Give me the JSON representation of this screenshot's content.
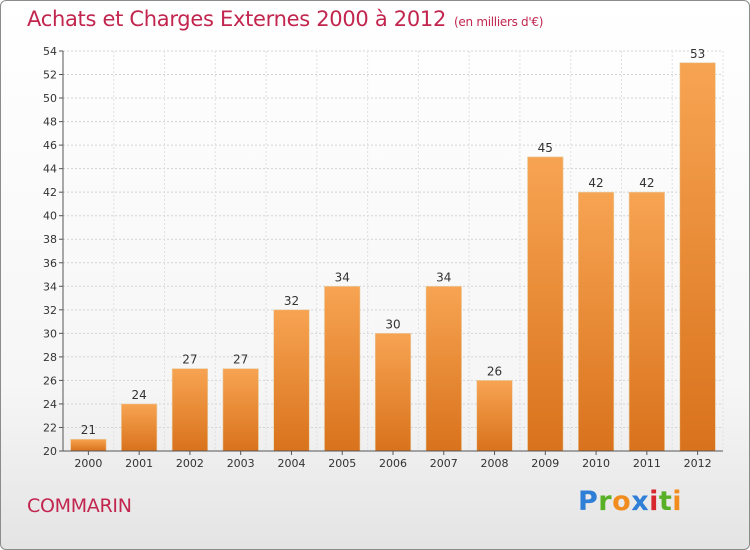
{
  "header": {
    "title": "Achats et Charges Externes 2000 à 2012",
    "subtitle": "(en milliers d'€)"
  },
  "commune": "COMMARIN",
  "brand": {
    "letters": [
      {
        "char": "P",
        "color": "#2f7fd6"
      },
      {
        "char": "r",
        "color": "#58b027"
      },
      {
        "char": "o",
        "color": "#f18c1e"
      },
      {
        "char": "x",
        "color": "#2f7fd6"
      },
      {
        "char": "i",
        "color": "#d8262e"
      },
      {
        "char": "t",
        "color": "#58b027"
      },
      {
        "char": "i",
        "color": "#f18c1e"
      }
    ]
  },
  "chart_data": {
    "type": "bar",
    "title": "Achats et Charges Externes 2000 à 2012",
    "subtitle": "(en milliers d'€)",
    "categories": [
      "2000",
      "2001",
      "2002",
      "2003",
      "2004",
      "2005",
      "2006",
      "2007",
      "2008",
      "2009",
      "2010",
      "2011",
      "2012"
    ],
    "values": [
      21,
      24,
      27,
      27,
      32,
      34,
      30,
      34,
      26,
      45,
      42,
      42,
      53
    ],
    "ylim": [
      20,
      54
    ],
    "yticks": [
      20,
      22,
      24,
      26,
      28,
      30,
      32,
      34,
      36,
      38,
      40,
      42,
      44,
      46,
      48,
      50,
      52,
      54
    ],
    "grid": true,
    "legend": "none",
    "bar_color_top": "#f7a452",
    "bar_color_bottom": "#d9721c"
  }
}
